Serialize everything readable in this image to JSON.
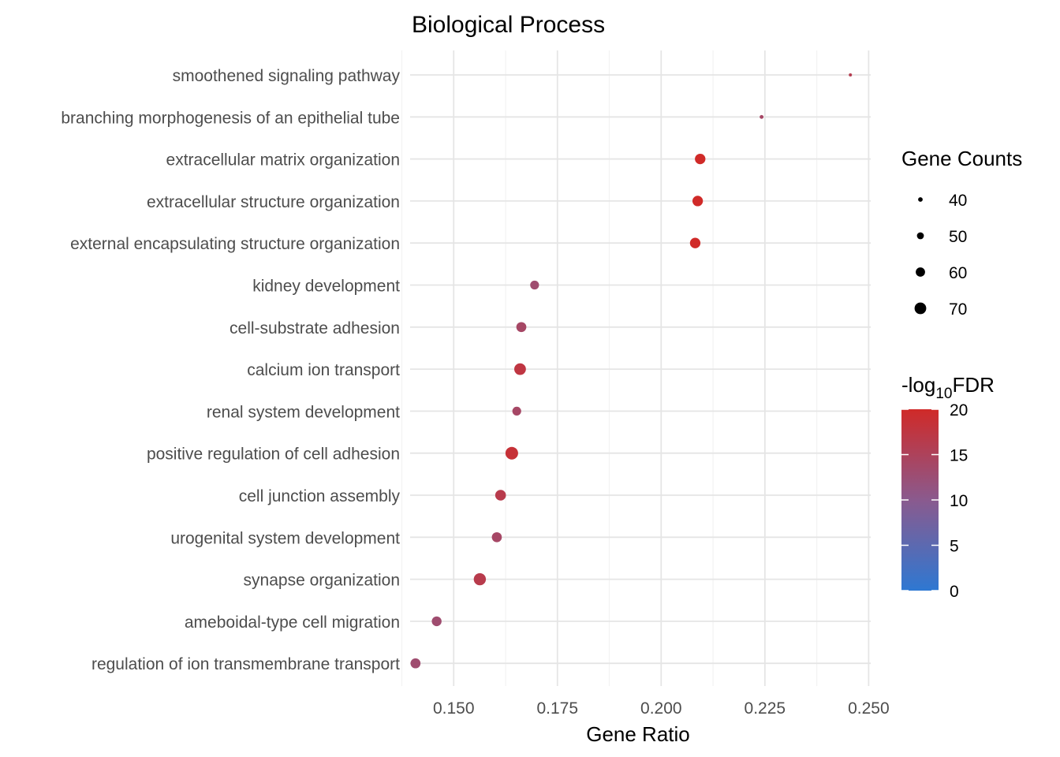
{
  "chart_data": {
    "type": "scatter",
    "title": "Biological Process",
    "xlabel": "Gene Ratio",
    "ylabel": "",
    "xlim": [
      0.1395,
      0.2505
    ],
    "x_ticks": [
      0.15,
      0.175,
      0.2,
      0.225,
      0.25
    ],
    "x_tick_labels": [
      "0.150",
      "0.175",
      "0.200",
      "0.225",
      "0.250"
    ],
    "grid": true,
    "categories": [
      "smoothened signaling pathway",
      "branching morphogenesis of an epithelial tube",
      "extracellular matrix organization",
      "extracellular structure organization",
      "external encapsulating structure organization",
      "kidney development",
      "cell-substrate adhesion",
      "calcium ion transport",
      "renal system development",
      "positive regulation of cell adhesion",
      "cell junction assembly",
      "urogenital system development",
      "synapse organization",
      "ameboidal-type cell migration",
      "regulation of ion transmembrane transport"
    ],
    "points": [
      {
        "term": "smoothened signaling pathway",
        "gene_ratio": 0.2456,
        "gene_count": 34,
        "neg_log10_fdr": 16.0
      },
      {
        "term": "branching morphogenesis of an epithelial tube",
        "gene_ratio": 0.2242,
        "gene_count": 37,
        "neg_log10_fdr": 14.0
      },
      {
        "term": "extracellular matrix organization",
        "gene_ratio": 0.2094,
        "gene_count": 65,
        "neg_log10_fdr": 20.0
      },
      {
        "term": "extracellular structure organization",
        "gene_ratio": 0.2088,
        "gene_count": 65,
        "neg_log10_fdr": 20.0
      },
      {
        "term": "external encapsulating structure organization",
        "gene_ratio": 0.2082,
        "gene_count": 65,
        "neg_log10_fdr": 20.0
      },
      {
        "term": "kidney development",
        "gene_ratio": 0.1695,
        "gene_count": 58,
        "neg_log10_fdr": 13.0
      },
      {
        "term": "cell-substrate adhesion",
        "gene_ratio": 0.1663,
        "gene_count": 63,
        "neg_log10_fdr": 14.0
      },
      {
        "term": "calcium ion transport",
        "gene_ratio": 0.166,
        "gene_count": 70,
        "neg_log10_fdr": 17.5
      },
      {
        "term": "renal system development",
        "gene_ratio": 0.1652,
        "gene_count": 58,
        "neg_log10_fdr": 14.0
      },
      {
        "term": "positive regulation of cell adhesion",
        "gene_ratio": 0.164,
        "gene_count": 74,
        "neg_log10_fdr": 18.5
      },
      {
        "term": "cell junction assembly",
        "gene_ratio": 0.1613,
        "gene_count": 66,
        "neg_log10_fdr": 16.5
      },
      {
        "term": "urogenital system development",
        "gene_ratio": 0.1604,
        "gene_count": 63,
        "neg_log10_fdr": 14.0
      },
      {
        "term": "synapse organization",
        "gene_ratio": 0.1563,
        "gene_count": 72,
        "neg_log10_fdr": 16.5
      },
      {
        "term": "ameboidal-type cell migration",
        "gene_ratio": 0.1459,
        "gene_count": 62,
        "neg_log10_fdr": 13.0
      },
      {
        "term": "regulation of ion transmembrane transport",
        "gene_ratio": 0.1408,
        "gene_count": 63,
        "neg_log10_fdr": 13.0
      }
    ],
    "size_legend": {
      "title": "Gene Counts",
      "values": [
        40,
        50,
        60,
        70
      ],
      "labels": [
        "40",
        "50",
        "60",
        "70"
      ]
    },
    "color_legend": {
      "title_prefix": "-log",
      "title_subscript": "10",
      "title_suffix": "FDR",
      "range": [
        0,
        20
      ],
      "ticks": [
        0,
        5,
        10,
        15,
        20
      ],
      "tick_labels": [
        "0",
        "5",
        "10",
        "15",
        "20"
      ],
      "color_low": "#2e78d2",
      "color_mid": "#8a5a8e",
      "color_high": "#d02a28"
    },
    "legend_position": "right"
  }
}
